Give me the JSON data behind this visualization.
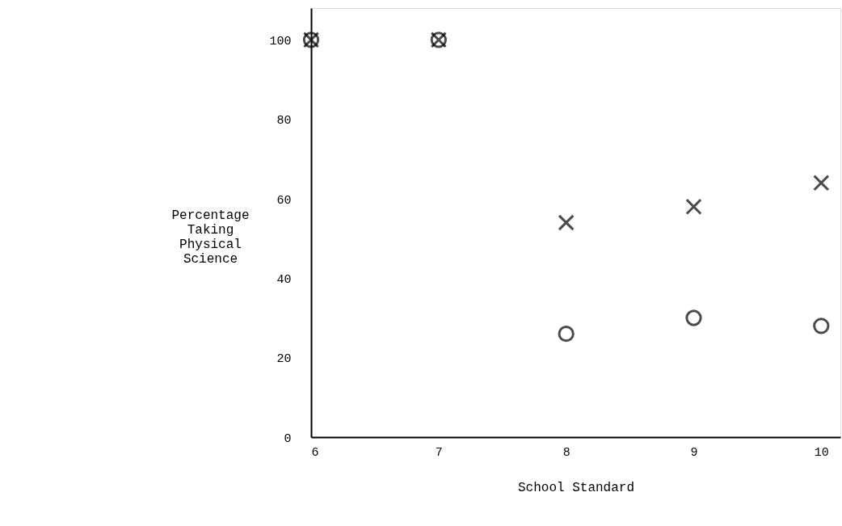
{
  "chart_data": {
    "type": "scatter",
    "xlabel": "School Standard",
    "ylabel": "Percentage Taking Physical Science",
    "x": [
      6,
      7,
      8,
      9,
      10
    ],
    "series": [
      {
        "color": "#000000",
        "marker": "circle",
        "values": [
          100,
          100,
          26,
          30,
          28
        ]
      },
      {
        "color": "#000000",
        "marker": "cross",
        "values": [
          100,
          100,
          54,
          58,
          64
        ]
      }
    ],
    "xlim": [
      6,
      10.15
    ],
    "ylim": [
      0,
      108
    ],
    "xticks": [
      6,
      7,
      8,
      9,
      10
    ],
    "yticks": [
      0,
      20,
      40,
      60,
      80,
      100
    ],
    "grid": false
  }
}
